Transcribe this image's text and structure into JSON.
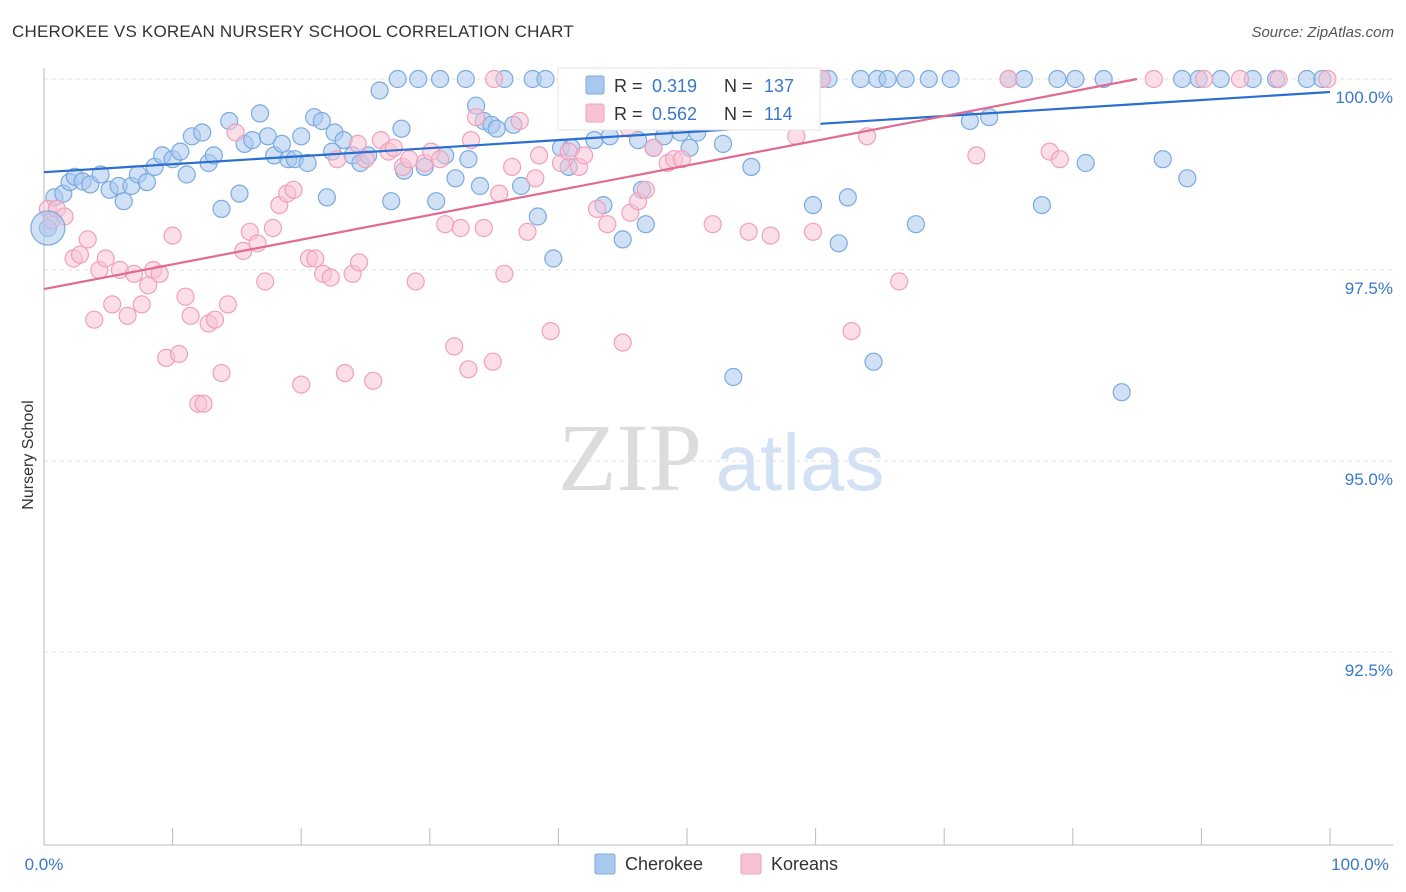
{
  "title": "CHEROKEE VS KOREAN NURSERY SCHOOL CORRELATION CHART",
  "source": "Source: ZipAtlas.com",
  "watermark": {
    "zip": "ZIP",
    "atlas": "atlas"
  },
  "chart_data": {
    "type": "scatter",
    "title": "CHEROKEE VS KOREAN NURSERY SCHOOL CORRELATION CHART",
    "xlabel": "",
    "ylabel": "Nursery School",
    "xlim": [
      0,
      100
    ],
    "ylim": [
      90.1,
      100.45
    ],
    "x_tick_labels": [
      "0.0%",
      "100.0%"
    ],
    "y_ticks": [
      {
        "value": 100.0,
        "label": "100.0%"
      },
      {
        "value": 97.5,
        "label": "97.5%"
      },
      {
        "value": 95.0,
        "label": "95.0%"
      },
      {
        "value": 92.5,
        "label": "92.5%"
      }
    ],
    "grid": "dashed horizontal",
    "legend": {
      "placement": "top-center",
      "rows": [
        {
          "r_label": "R =",
          "r_value": "0.319",
          "n_label": "N =",
          "n_value": "137"
        },
        {
          "r_label": "R =",
          "r_value": "0.562",
          "n_label": "N =",
          "n_value": "114"
        }
      ]
    },
    "series": [
      {
        "name": "Cherokee",
        "color": "#7aaae0",
        "fill": "#a9c8ee",
        "line_color": "#2a6fcf",
        "trend": {
          "x": [
            0,
            100
          ],
          "y": [
            98.78,
            99.83
          ]
        },
        "points": [
          [
            0.3,
            98.05
          ],
          [
            0.8,
            98.45
          ],
          [
            1.5,
            98.5
          ],
          [
            2.0,
            98.65
          ],
          [
            2.4,
            98.72
          ],
          [
            3.0,
            98.66
          ],
          [
            3.6,
            98.62
          ],
          [
            4.4,
            98.75
          ],
          [
            5.1,
            98.55
          ],
          [
            5.8,
            98.6
          ],
          [
            6.2,
            98.4
          ],
          [
            6.8,
            98.6
          ],
          [
            7.3,
            98.75
          ],
          [
            8.0,
            98.65
          ],
          [
            8.6,
            98.85
          ],
          [
            9.2,
            99.0
          ],
          [
            10.0,
            98.95
          ],
          [
            10.6,
            99.05
          ],
          [
            11.1,
            98.75
          ],
          [
            11.5,
            99.25
          ],
          [
            12.3,
            99.3
          ],
          [
            12.8,
            98.9
          ],
          [
            13.2,
            99.0
          ],
          [
            13.8,
            98.3
          ],
          [
            14.4,
            99.45
          ],
          [
            15.2,
            98.5
          ],
          [
            15.6,
            99.15
          ],
          [
            16.2,
            99.2
          ],
          [
            16.8,
            99.55
          ],
          [
            17.4,
            99.25
          ],
          [
            17.9,
            99.0
          ],
          [
            18.5,
            99.15
          ],
          [
            19.0,
            98.95
          ],
          [
            19.5,
            98.95
          ],
          [
            20.0,
            99.25
          ],
          [
            20.5,
            98.9
          ],
          [
            21.0,
            99.5
          ],
          [
            21.6,
            99.45
          ],
          [
            22.0,
            98.45
          ],
          [
            22.6,
            99.3
          ],
          [
            23.3,
            99.2
          ],
          [
            24.0,
            99.0
          ],
          [
            24.6,
            98.9
          ],
          [
            25.2,
            99.0
          ],
          [
            26.1,
            99.85
          ],
          [
            27.0,
            98.4
          ],
          [
            27.5,
            100.0
          ],
          [
            28.0,
            98.8
          ],
          [
            29.1,
            100.0
          ],
          [
            29.6,
            98.85
          ],
          [
            30.5,
            98.4
          ],
          [
            31.2,
            99.0
          ],
          [
            32.0,
            98.7
          ],
          [
            32.8,
            100.0
          ],
          [
            33.0,
            98.95
          ],
          [
            33.6,
            99.65
          ],
          [
            34.2,
            99.45
          ],
          [
            34.8,
            99.4
          ],
          [
            35.2,
            99.35
          ],
          [
            35.8,
            100.0
          ],
          [
            36.5,
            99.4
          ],
          [
            37.1,
            98.6
          ],
          [
            38.0,
            100.0
          ],
          [
            38.4,
            98.2
          ],
          [
            39.0,
            100.0
          ],
          [
            39.6,
            97.65
          ],
          [
            40.2,
            99.1
          ],
          [
            41.0,
            99.1
          ],
          [
            41.5,
            100.0
          ],
          [
            42.3,
            100.0
          ],
          [
            42.8,
            99.2
          ],
          [
            43.5,
            98.35
          ],
          [
            44.0,
            99.25
          ],
          [
            45.0,
            97.9
          ],
          [
            45.5,
            100.0
          ],
          [
            46.2,
            99.2
          ],
          [
            46.8,
            98.1
          ],
          [
            47.4,
            99.1
          ],
          [
            48.2,
            99.25
          ],
          [
            48.9,
            100.0
          ],
          [
            49.5,
            99.3
          ],
          [
            50.2,
            99.1
          ],
          [
            51.0,
            100.0
          ],
          [
            52.2,
            100.0
          ],
          [
            52.8,
            99.15
          ],
          [
            53.6,
            96.1
          ],
          [
            54.2,
            100.0
          ],
          [
            55.0,
            98.85
          ],
          [
            55.8,
            100.0
          ],
          [
            56.5,
            100.0
          ],
          [
            57.0,
            100.0
          ],
          [
            58.0,
            100.0
          ],
          [
            59.0,
            100.0
          ],
          [
            59.8,
            98.35
          ],
          [
            61.0,
            100.0
          ],
          [
            61.8,
            97.85
          ],
          [
            62.5,
            98.45
          ],
          [
            63.5,
            100.0
          ],
          [
            64.8,
            100.0
          ],
          [
            65.6,
            100.0
          ],
          [
            67.0,
            100.0
          ],
          [
            67.8,
            98.1
          ],
          [
            68.8,
            100.0
          ],
          [
            70.5,
            100.0
          ],
          [
            72.0,
            99.45
          ],
          [
            73.5,
            99.5
          ],
          [
            75.0,
            100.0
          ],
          [
            76.2,
            100.0
          ],
          [
            77.6,
            98.35
          ],
          [
            78.8,
            100.0
          ],
          [
            80.2,
            100.0
          ],
          [
            81.0,
            98.9
          ],
          [
            82.4,
            100.0
          ],
          [
            83.8,
            95.9
          ],
          [
            87.0,
            98.95
          ],
          [
            88.5,
            100.0
          ],
          [
            88.9,
            98.7
          ],
          [
            89.8,
            100.0
          ],
          [
            91.5,
            100.0
          ],
          [
            94.0,
            100.0
          ],
          [
            95.8,
            100.0
          ],
          [
            98.2,
            100.0
          ],
          [
            99.4,
            100.0
          ],
          [
            30.8,
            100.0
          ],
          [
            42.0,
            100.0
          ],
          [
            60.5,
            100.0
          ],
          [
            64.5,
            96.3
          ],
          [
            22.4,
            99.05
          ],
          [
            40.8,
            98.85
          ],
          [
            50.8,
            99.3
          ],
          [
            27.8,
            99.35
          ],
          [
            33.9,
            98.6
          ],
          [
            46.5,
            98.55
          ]
        ]
      },
      {
        "name": "Koreans",
        "color": "#f0a0bc",
        "fill": "#f7c2d4",
        "line_color": "#e06a92",
        "trend": {
          "x": [
            0,
            85
          ],
          "y": [
            97.25,
            100.0
          ]
        },
        "points": [
          [
            0.3,
            98.3
          ],
          [
            0.6,
            98.15
          ],
          [
            1.0,
            98.3
          ],
          [
            1.6,
            98.2
          ],
          [
            2.3,
            97.65
          ],
          [
            2.8,
            97.7
          ],
          [
            3.4,
            97.9
          ],
          [
            3.9,
            96.85
          ],
          [
            4.3,
            97.5
          ],
          [
            4.8,
            97.65
          ],
          [
            5.3,
            97.05
          ],
          [
            5.9,
            97.5
          ],
          [
            6.5,
            96.9
          ],
          [
            7.0,
            97.45
          ],
          [
            7.6,
            97.05
          ],
          [
            8.1,
            97.3
          ],
          [
            8.5,
            97.5
          ],
          [
            9.0,
            97.45
          ],
          [
            9.5,
            96.35
          ],
          [
            10.0,
            97.95
          ],
          [
            10.5,
            96.4
          ],
          [
            11.0,
            97.15
          ],
          [
            11.4,
            96.9
          ],
          [
            12.0,
            95.75
          ],
          [
            12.4,
            95.75
          ],
          [
            12.8,
            96.8
          ],
          [
            13.3,
            96.85
          ],
          [
            13.8,
            96.15
          ],
          [
            14.3,
            97.05
          ],
          [
            14.9,
            99.3
          ],
          [
            15.5,
            97.75
          ],
          [
            16.0,
            98.0
          ],
          [
            16.6,
            97.85
          ],
          [
            17.2,
            97.35
          ],
          [
            17.8,
            98.05
          ],
          [
            18.3,
            98.35
          ],
          [
            18.9,
            98.5
          ],
          [
            19.4,
            98.55
          ],
          [
            20.0,
            96.0
          ],
          [
            20.6,
            97.65
          ],
          [
            21.1,
            97.65
          ],
          [
            21.7,
            97.45
          ],
          [
            22.3,
            97.4
          ],
          [
            22.8,
            98.95
          ],
          [
            23.4,
            96.15
          ],
          [
            24.0,
            97.45
          ],
          [
            24.5,
            97.6
          ],
          [
            25.0,
            98.95
          ],
          [
            25.6,
            96.05
          ],
          [
            26.2,
            99.2
          ],
          [
            26.8,
            99.05
          ],
          [
            27.2,
            99.1
          ],
          [
            27.9,
            98.85
          ],
          [
            28.4,
            98.95
          ],
          [
            28.9,
            97.35
          ],
          [
            29.6,
            98.9
          ],
          [
            30.1,
            99.05
          ],
          [
            30.8,
            98.95
          ],
          [
            31.2,
            98.1
          ],
          [
            31.9,
            96.5
          ],
          [
            32.4,
            98.05
          ],
          [
            33.0,
            96.2
          ],
          [
            33.6,
            99.5
          ],
          [
            34.2,
            98.05
          ],
          [
            34.9,
            96.3
          ],
          [
            35.4,
            98.5
          ],
          [
            35.8,
            97.45
          ],
          [
            36.4,
            98.85
          ],
          [
            37.0,
            99.45
          ],
          [
            37.6,
            98.0
          ],
          [
            38.2,
            98.7
          ],
          [
            39.4,
            96.7
          ],
          [
            40.2,
            98.9
          ],
          [
            40.8,
            99.05
          ],
          [
            41.6,
            98.85
          ],
          [
            43.0,
            98.3
          ],
          [
            43.8,
            98.1
          ],
          [
            45.0,
            96.55
          ],
          [
            45.6,
            98.25
          ],
          [
            46.2,
            98.4
          ],
          [
            46.8,
            98.55
          ],
          [
            47.4,
            99.1
          ],
          [
            48.5,
            98.9
          ],
          [
            49.0,
            98.95
          ],
          [
            49.6,
            98.95
          ],
          [
            50.5,
            100.0
          ],
          [
            52.0,
            98.1
          ],
          [
            53.5,
            100.0
          ],
          [
            54.8,
            98.0
          ],
          [
            55.5,
            100.0
          ],
          [
            56.5,
            97.95
          ],
          [
            58.0,
            99.6
          ],
          [
            58.5,
            99.25
          ],
          [
            59.8,
            98.0
          ],
          [
            60.5,
            100.0
          ],
          [
            62.8,
            96.7
          ],
          [
            64.0,
            99.25
          ],
          [
            66.5,
            97.35
          ],
          [
            72.5,
            99.0
          ],
          [
            75.0,
            100.0
          ],
          [
            78.2,
            99.05
          ],
          [
            79.0,
            98.95
          ],
          [
            86.3,
            100.0
          ],
          [
            90.2,
            100.0
          ],
          [
            93.0,
            100.0
          ],
          [
            96.0,
            100.0
          ],
          [
            99.8,
            100.0
          ],
          [
            42.0,
            99.0
          ],
          [
            33.2,
            99.2
          ],
          [
            24.4,
            99.15
          ],
          [
            35.0,
            100.0
          ],
          [
            45.5,
            99.35
          ],
          [
            55.0,
            99.6
          ],
          [
            38.5,
            99.0
          ]
        ]
      }
    ]
  }
}
